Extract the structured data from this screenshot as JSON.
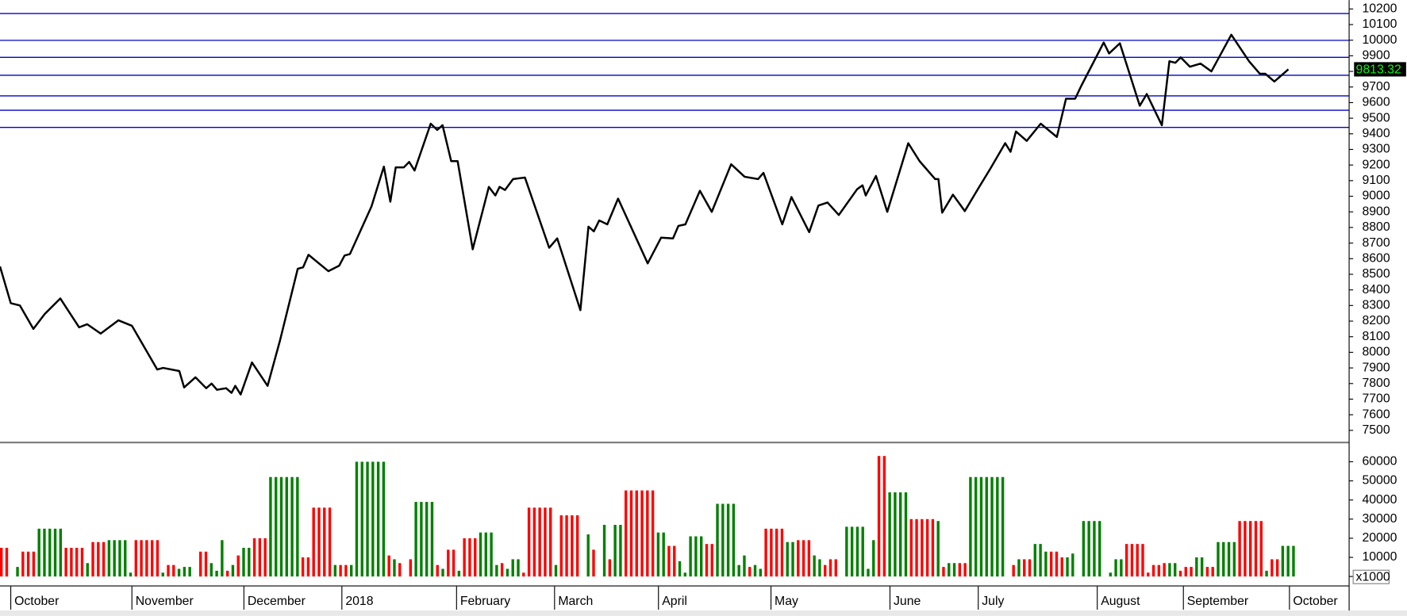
{
  "chart_data": [
    {
      "type": "line",
      "xlim": [
        0,
        250.5
      ],
      "ylim": [
        7431,
        10257
      ],
      "yticks": [
        7500,
        7600,
        7700,
        7800,
        7900,
        8000,
        8100,
        8200,
        8300,
        8400,
        8500,
        8600,
        8700,
        8800,
        8900,
        9000,
        9100,
        9200,
        9300,
        9400,
        9500,
        9600,
        9700,
        9800,
        9900,
        10000,
        10100,
        10200
      ],
      "hlines": [
        10171,
        9999,
        9890,
        9775,
        9643,
        9551,
        9441
      ],
      "hline_color": "#0000cc",
      "last_value": 9813.32,
      "series": [
        {
          "color": "#000000",
          "x": [
            0,
            2,
            3.7,
            6.2,
            8.3,
            11.2,
            14.7,
            16.2,
            18.7,
            22,
            24.5,
            29.2,
            30.3,
            33.3,
            34.2,
            36.3,
            38.3,
            39.3,
            40.3,
            42,
            43,
            43.7,
            44.7,
            46.8,
            49.7,
            52,
            55.3,
            56.3,
            57.3,
            61,
            63,
            64,
            65,
            69,
            71.3,
            72.5,
            73.5,
            75,
            76,
            77,
            80,
            81.2,
            82.2,
            83.8,
            85,
            87.8,
            90.8,
            92,
            92.8,
            93.8,
            95.3,
            97.5,
            102,
            103.5,
            107.8,
            109.3,
            110.3,
            111.3,
            112.8,
            114.8,
            120.3,
            122.8,
            125,
            126,
            127.3,
            130,
            132.2,
            135.8,
            138.3,
            140.8,
            141.8,
            145.3,
            147,
            150.3,
            152,
            153.7,
            155.8,
            159.2,
            160.2,
            160.8,
            162.7,
            164.8,
            168.7,
            170.8,
            173.7,
            174.3,
            175,
            177,
            179.2,
            181.7,
            184,
            186.7,
            187.7,
            188.7,
            190.7,
            193.3,
            196.3,
            198,
            199.7,
            200.8,
            205,
            206,
            208,
            211.7,
            213,
            215.8,
            217.2,
            218.3,
            219.3,
            221,
            223,
            225,
            228.7,
            232,
            234,
            235,
            236.7,
            239.3
          ],
          "values": [
            8550,
            8315,
            8300,
            8150,
            8245,
            8345,
            8160,
            8180,
            8120,
            8205,
            8170,
            7890,
            7900,
            7880,
            7775,
            7840,
            7770,
            7800,
            7760,
            7770,
            7740,
            7785,
            7730,
            7935,
            7785,
            8075,
            8535,
            8545,
            8625,
            8520,
            8555,
            8620,
            8630,
            8935,
            9190,
            8965,
            9185,
            9185,
            9220,
            9165,
            9465,
            9425,
            9455,
            9225,
            9225,
            8660,
            9060,
            9005,
            9060,
            9040,
            9110,
            9120,
            8670,
            8730,
            8270,
            8805,
            8775,
            8845,
            8820,
            8985,
            8570,
            8735,
            8730,
            8810,
            8820,
            9035,
            8900,
            9205,
            9125,
            9110,
            9150,
            8820,
            8995,
            8770,
            8940,
            8960,
            8880,
            9045,
            9070,
            9005,
            9130,
            8900,
            9340,
            9225,
            9110,
            9110,
            8895,
            9010,
            8905,
            9050,
            9180,
            9340,
            9285,
            9415,
            9355,
            9465,
            9380,
            9625,
            9625,
            9705,
            9985,
            9915,
            9980,
            9580,
            9655,
            9455,
            9865,
            9855,
            9890,
            9830,
            9850,
            9800,
            10035,
            9865,
            9785,
            9785,
            9735,
            9813.32
          ]
        }
      ]
    },
    {
      "type": "bar",
      "xlim": [
        0,
        250.5
      ],
      "ylim": [
        -4219,
        69375
      ],
      "yticks": [
        0,
        10000,
        20000,
        30000,
        40000,
        50000,
        60000
      ],
      "annotation": "x1000",
      "xticks": [
        {
          "value": 2,
          "label": "October"
        },
        {
          "value": 24.5,
          "label": "November"
        },
        {
          "value": 45.3,
          "label": "December"
        },
        {
          "value": 63.5,
          "label": "2018"
        },
        {
          "value": 84.8,
          "label": "February"
        },
        {
          "value": 103,
          "label": "March"
        },
        {
          "value": 122.3,
          "label": "April"
        },
        {
          "value": 143.2,
          "label": "May"
        },
        {
          "value": 165.3,
          "label": "June"
        },
        {
          "value": 181.7,
          "label": "July"
        },
        {
          "value": 203.8,
          "label": "August"
        },
        {
          "value": 219.8,
          "label": "September"
        },
        {
          "value": 239.5,
          "label": "October"
        }
      ],
      "series": [
        {
          "color": "#ff0000",
          "x": [
            0,
            1,
            4,
            5,
            6,
            12,
            13,
            14,
            15,
            17,
            18,
            19,
            25,
            26,
            27,
            28,
            29,
            31,
            32,
            37,
            38,
            42,
            44,
            47,
            48,
            49,
            56,
            57,
            58,
            59,
            60,
            61,
            63,
            64,
            72,
            74,
            76,
            81,
            83,
            84,
            86,
            87,
            88,
            93,
            97,
            98,
            99,
            100,
            101,
            102,
            104,
            105,
            106,
            107,
            110,
            113,
            116,
            117,
            118,
            119,
            120,
            121,
            124,
            125,
            131,
            132,
            139,
            142,
            143,
            144,
            145,
            148,
            149,
            150,
            153,
            154,
            155,
            163,
            164,
            169,
            170,
            171,
            172,
            173,
            175,
            178,
            179,
            188,
            190,
            191,
            195,
            196,
            197,
            209,
            210,
            211,
            212,
            213,
            214,
            215,
            216,
            219,
            220,
            221,
            224,
            225,
            230,
            231,
            232,
            233,
            234,
            236,
            237
          ],
          "values": [
            15000,
            15000,
            13000,
            13000,
            13000,
            15000,
            15000,
            15000,
            15000,
            18000,
            18000,
            18000,
            19000,
            19000,
            19000,
            19000,
            19000,
            6000,
            6000,
            13000,
            13000,
            3000,
            11000,
            20000,
            20000,
            20000,
            10000,
            10000,
            36000,
            36000,
            36000,
            36000,
            6000,
            6000,
            11000,
            7000,
            9000,
            6000,
            14000,
            14000,
            20000,
            20000,
            20000,
            7000,
            2000,
            36000,
            36000,
            36000,
            36000,
            36000,
            32000,
            32000,
            32000,
            32000,
            14000,
            9000,
            45000,
            45000,
            45000,
            45000,
            45000,
            45000,
            16000,
            16000,
            17000,
            17000,
            5000,
            25000,
            25000,
            25000,
            25000,
            19000,
            19000,
            19000,
            6000,
            9000,
            9000,
            63000,
            63000,
            30000,
            30000,
            30000,
            30000,
            30000,
            5000,
            7000,
            7000,
            6000,
            9000,
            9000,
            13000,
            13000,
            10000,
            17000,
            17000,
            17000,
            17000,
            2000,
            6000,
            6000,
            7000,
            3000,
            5000,
            5000,
            5000,
            5000,
            29000,
            29000,
            29000,
            29000,
            29000,
            9000,
            9000
          ]
        },
        {
          "color": "#008000",
          "x": [
            3,
            7,
            8,
            9,
            10,
            11,
            16,
            20,
            21,
            22,
            23,
            24,
            30,
            33,
            34,
            35,
            39,
            40,
            41,
            43,
            45,
            46,
            50,
            51,
            52,
            53,
            54,
            55,
            62,
            65,
            66,
            67,
            68,
            69,
            70,
            71,
            73,
            77,
            78,
            79,
            80,
            82,
            85,
            89,
            90,
            91,
            92,
            94,
            95,
            96,
            103,
            109,
            112,
            114,
            115,
            122,
            123,
            126,
            127,
            128,
            129,
            130,
            133,
            134,
            135,
            136,
            137,
            138,
            140,
            141,
            146,
            147,
            151,
            152,
            157,
            158,
            159,
            160,
            161,
            162,
            165,
            166,
            167,
            168,
            174,
            176,
            177,
            180,
            181,
            182,
            183,
            184,
            185,
            186,
            189,
            192,
            193,
            194,
            198,
            199,
            201,
            202,
            203,
            204,
            206,
            207,
            208,
            217,
            218,
            222,
            223,
            226,
            227,
            228,
            229,
            235,
            238,
            239,
            240
          ],
          "values": [
            5000,
            25000,
            25000,
            25000,
            25000,
            25000,
            7000,
            19000,
            19000,
            19000,
            19000,
            2000,
            2000,
            4000,
            5000,
            5000,
            7000,
            3000,
            19000,
            6000,
            15000,
            15000,
            52000,
            52000,
            52000,
            52000,
            52000,
            52000,
            6000,
            6000,
            60000,
            60000,
            60000,
            60000,
            60000,
            60000,
            9000,
            39000,
            39000,
            39000,
            39000,
            4000,
            3000,
            23000,
            23000,
            23000,
            6000,
            4000,
            9000,
            9000,
            6000,
            22000,
            27000,
            27000,
            27000,
            23000,
            23000,
            8000,
            2000,
            21000,
            21000,
            21000,
            38000,
            38000,
            38000,
            38000,
            6000,
            11000,
            6000,
            4000,
            18000,
            18000,
            11000,
            9000,
            26000,
            26000,
            26000,
            26000,
            4000,
            19000,
            44000,
            44000,
            44000,
            44000,
            29000,
            7000,
            7000,
            52000,
            52000,
            52000,
            52000,
            52000,
            52000,
            52000,
            9000,
            17000,
            17000,
            13000,
            10000,
            12000,
            29000,
            29000,
            29000,
            29000,
            2000,
            9000,
            9000,
            7000,
            7000,
            10000,
            10000,
            18000,
            18000,
            18000,
            18000,
            3000,
            16000,
            16000,
            16000
          ]
        }
      ]
    }
  ]
}
